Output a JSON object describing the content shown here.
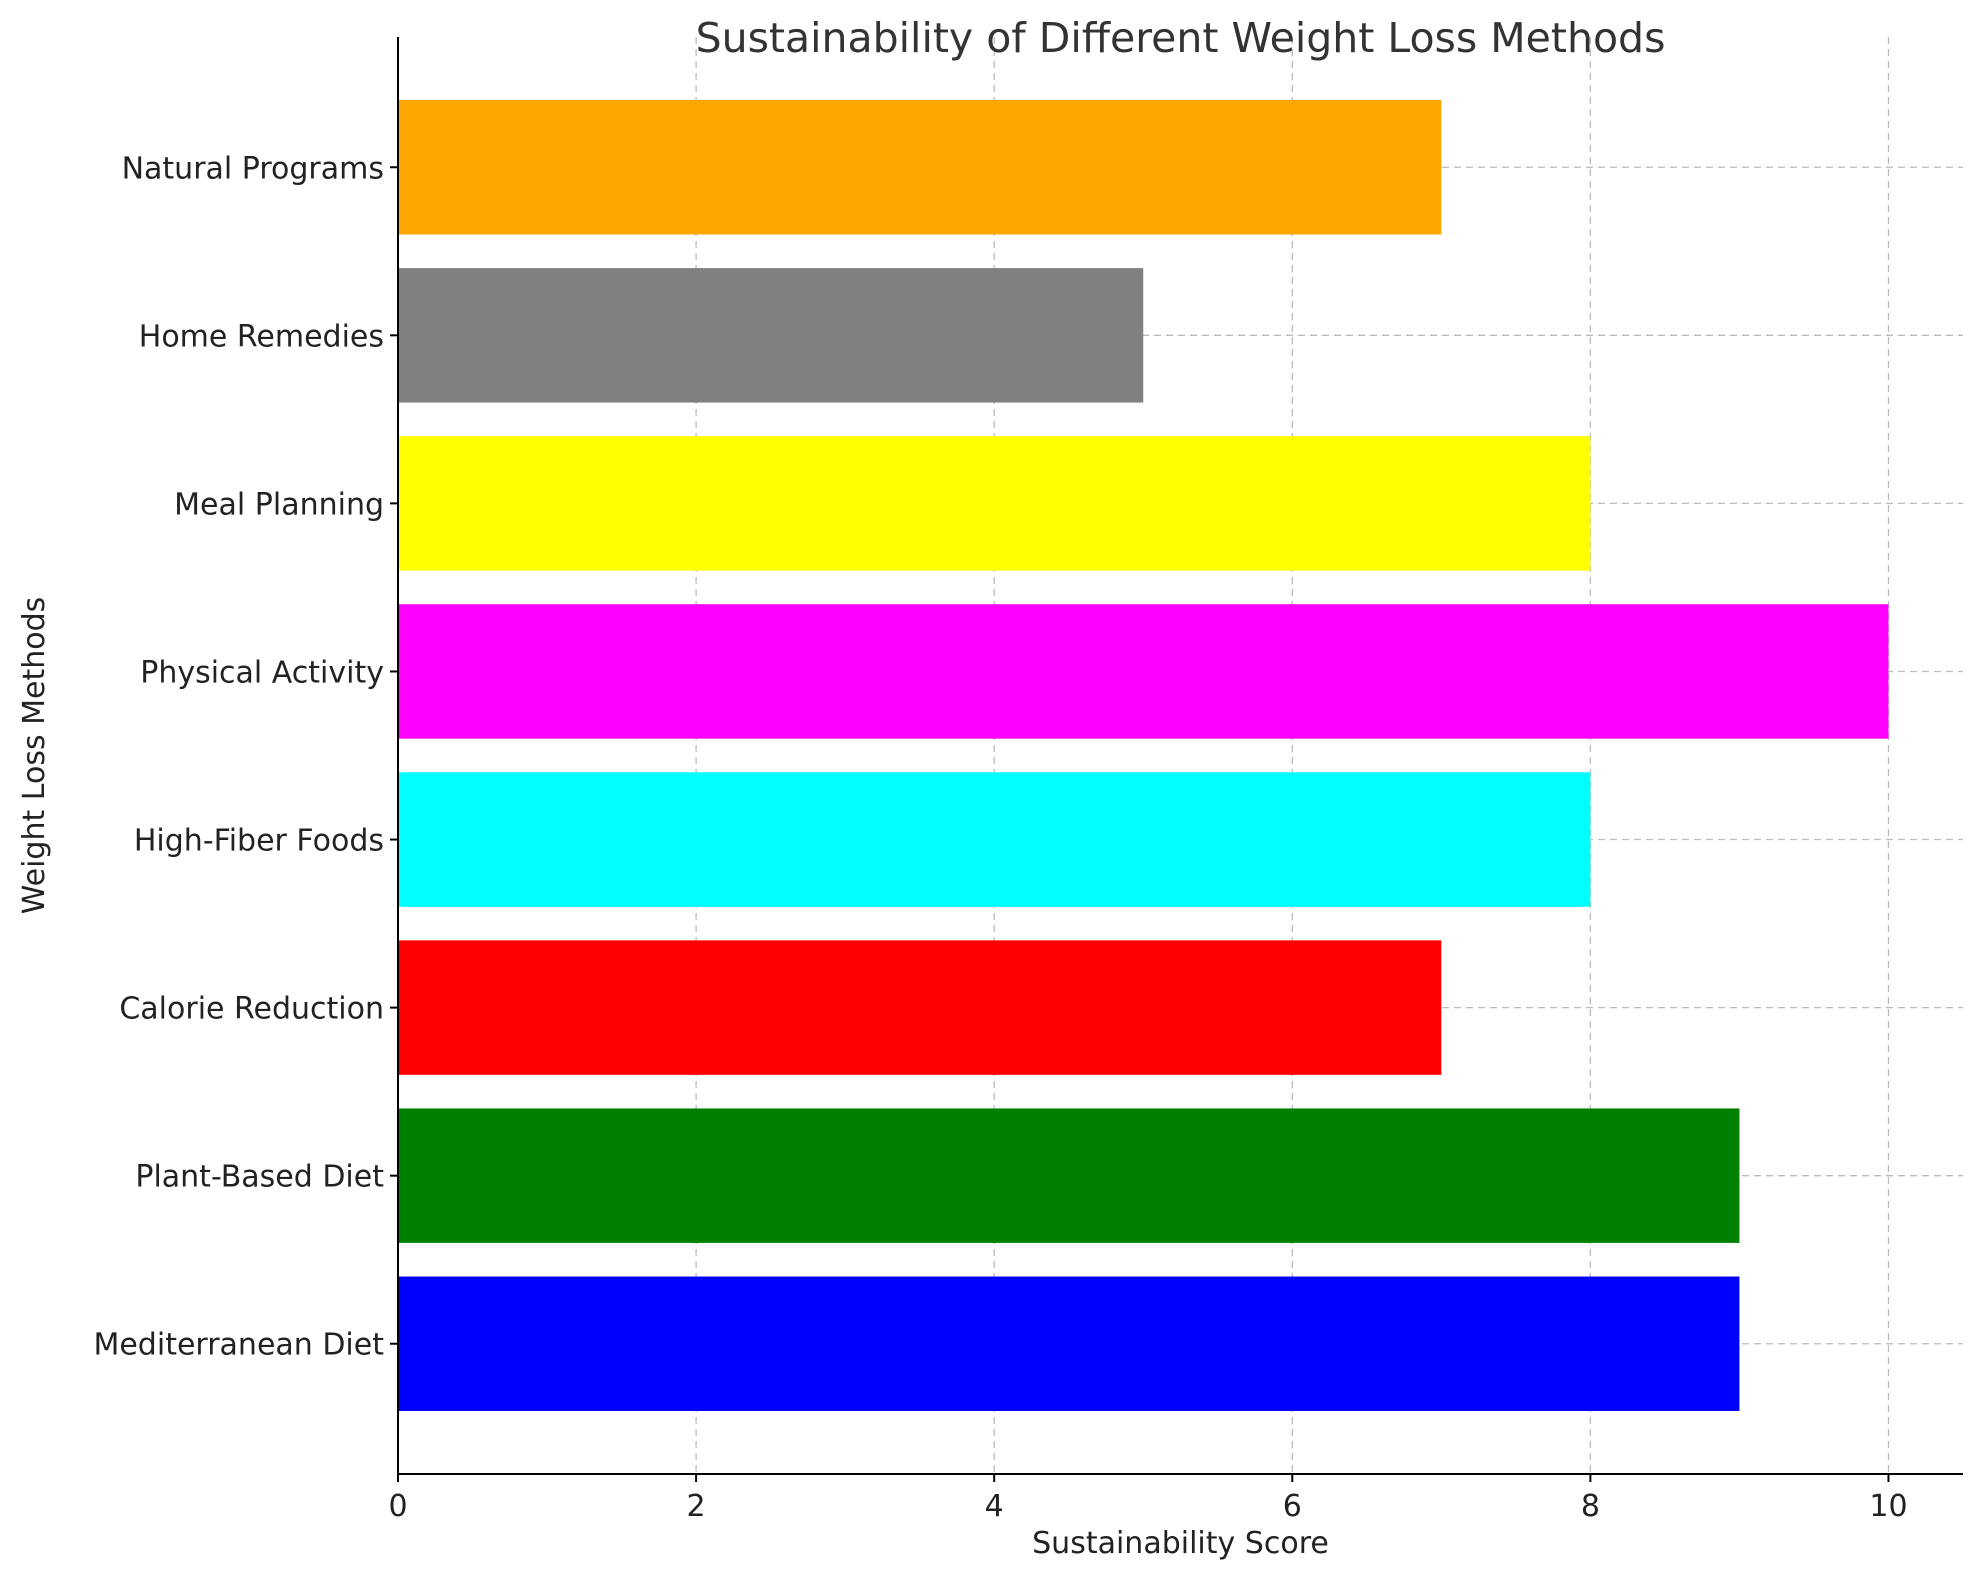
{
  "chart_data": {
    "type": "bar",
    "orientation": "horizontal",
    "title": "Sustainability of Different Weight Loss Methods",
    "xlabel": "Sustainability Score",
    "ylabel": "Weight Loss Methods",
    "categories": [
      "Mediterranean Diet",
      "Plant-Based Diet",
      "Calorie Reduction",
      "High-Fiber Foods",
      "Physical Activity",
      "Meal Planning",
      "Home Remedies",
      "Natural Programs"
    ],
    "values": [
      9,
      9,
      7,
      8,
      10,
      8,
      5,
      7
    ],
    "colors": [
      "#0000ff",
      "#008000",
      "#ff0000",
      "#00ffff",
      "#ff00ff",
      "#ffff00",
      "#808080",
      "#ffa500"
    ],
    "xlim": [
      0,
      10.5
    ],
    "xticks": [
      "0",
      "2",
      "4",
      "6",
      "8",
      "10"
    ],
    "grid": true,
    "legend": "none"
  }
}
